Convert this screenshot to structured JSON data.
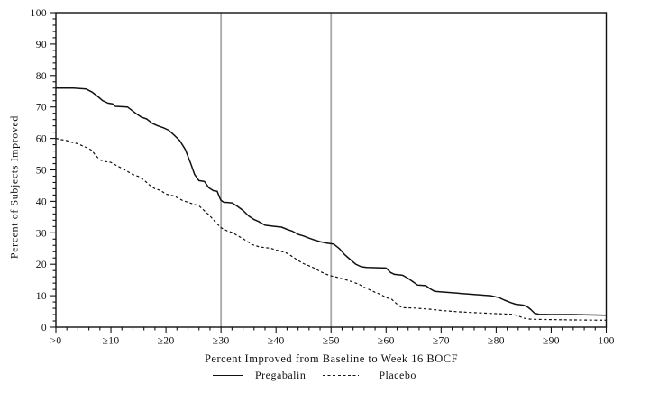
{
  "chart_data": {
    "type": "line",
    "title": "",
    "xlabel": "Percent Improved from Baseline to Week 16 BOCF",
    "ylabel": "Percent of Subjects Improved",
    "xlim": [
      0,
      100
    ],
    "ylim": [
      0,
      100
    ],
    "grid": false,
    "legend_position": "bottom",
    "x_tick_values": [
      0,
      10,
      20,
      30,
      40,
      50,
      60,
      70,
      80,
      90,
      100
    ],
    "x_tick_labels": [
      ">0",
      "≥10",
      "≥20",
      "≥30",
      "≥40",
      "≥50",
      "≥60",
      "≥70",
      "≥80",
      "≥90",
      "100"
    ],
    "y_tick_values": [
      0,
      10,
      20,
      30,
      40,
      50,
      60,
      70,
      80,
      90,
      100
    ],
    "y_tick_labels": [
      "0",
      "10",
      "20",
      "30",
      "40",
      "50",
      "60",
      "70",
      "80",
      "90",
      "100"
    ],
    "minor_tick_step": 2,
    "reference_lines_x": [
      30,
      50
    ],
    "reference_line_color": "#a8a8a8",
    "axis_color": "#111111",
    "series": [
      {
        "name": "Pregabalin",
        "style": "solid",
        "color": "#111111",
        "points": [
          [
            0,
            76
          ],
          [
            3.2,
            76
          ],
          [
            5.5,
            75.7
          ],
          [
            6.5,
            74.8
          ],
          [
            7.5,
            73.5
          ],
          [
            8.5,
            72
          ],
          [
            9.5,
            71.2
          ],
          [
            10.3,
            71
          ],
          [
            10.8,
            70.2
          ],
          [
            13,
            70
          ],
          [
            14.5,
            68
          ],
          [
            15.5,
            66.8
          ],
          [
            16.5,
            66.2
          ],
          [
            17.5,
            64.8
          ],
          [
            18.5,
            64
          ],
          [
            19.5,
            63.4
          ],
          [
            20.5,
            62.6
          ],
          [
            21.5,
            61
          ],
          [
            22.5,
            59.3
          ],
          [
            23.5,
            56.5
          ],
          [
            24.5,
            52
          ],
          [
            25.2,
            48.6
          ],
          [
            26,
            46.6
          ],
          [
            27,
            46.3
          ],
          [
            27.8,
            44.3
          ],
          [
            28.6,
            43.4
          ],
          [
            29.3,
            43.2
          ],
          [
            29.8,
            41
          ],
          [
            30,
            40.3
          ],
          [
            30.5,
            39.7
          ],
          [
            32,
            39.5
          ],
          [
            33,
            38.4
          ],
          [
            34,
            37.1
          ],
          [
            35,
            35.4
          ],
          [
            36,
            34.2
          ],
          [
            36.8,
            33.6
          ],
          [
            38,
            32.4
          ],
          [
            39.5,
            32.1
          ],
          [
            41,
            31.8
          ],
          [
            42,
            31.1
          ],
          [
            43,
            30.5
          ],
          [
            44,
            29.5
          ],
          [
            45,
            29
          ],
          [
            46,
            28.3
          ],
          [
            47,
            27.7
          ],
          [
            48,
            27.2
          ],
          [
            49,
            26.8
          ],
          [
            50.5,
            26.4
          ],
          [
            51.5,
            25
          ],
          [
            52.5,
            23
          ],
          [
            53.5,
            21.5
          ],
          [
            54.5,
            20
          ],
          [
            55.5,
            19.2
          ],
          [
            56.5,
            19
          ],
          [
            60,
            18.8
          ],
          [
            60.8,
            17.4
          ],
          [
            61.5,
            16.8
          ],
          [
            63,
            16.5
          ],
          [
            64,
            15.5
          ],
          [
            65,
            14.3
          ],
          [
            65.7,
            13.4
          ],
          [
            67.2,
            13.2
          ],
          [
            68,
            12.2
          ],
          [
            68.8,
            11.4
          ],
          [
            70,
            11.2
          ],
          [
            73,
            10.8
          ],
          [
            76,
            10.4
          ],
          [
            79,
            10
          ],
          [
            80.5,
            9.4
          ],
          [
            81.5,
            8.6
          ],
          [
            82.5,
            7.9
          ],
          [
            83.5,
            7.3
          ],
          [
            85,
            7
          ],
          [
            85.8,
            6.3
          ],
          [
            86.3,
            5.6
          ],
          [
            87,
            4.4
          ],
          [
            87.8,
            4.1
          ],
          [
            90,
            4
          ],
          [
            94,
            4
          ],
          [
            97,
            3.9
          ],
          [
            100,
            3.8
          ]
        ]
      },
      {
        "name": "Placebo",
        "style": "dashed",
        "color": "#111111",
        "points": [
          [
            0,
            60
          ],
          [
            1,
            59.6
          ],
          [
            2,
            59.3
          ],
          [
            3,
            58.7
          ],
          [
            4,
            58.3
          ],
          [
            5,
            57.5
          ],
          [
            6,
            56.8
          ],
          [
            6.6,
            56.1
          ],
          [
            7.2,
            54.6
          ],
          [
            8,
            53.2
          ],
          [
            8.8,
            52.7
          ],
          [
            10,
            52.4
          ],
          [
            11,
            51.4
          ],
          [
            12,
            50.5
          ],
          [
            13,
            49.5
          ],
          [
            14,
            48.5
          ],
          [
            15,
            47.9
          ],
          [
            16,
            46.8
          ],
          [
            17,
            45.2
          ],
          [
            18,
            44
          ],
          [
            19,
            43.5
          ],
          [
            20,
            42.3
          ],
          [
            21.5,
            41.7
          ],
          [
            23,
            40.3
          ],
          [
            24,
            39.7
          ],
          [
            25,
            39.1
          ],
          [
            26,
            38.6
          ],
          [
            27,
            37
          ],
          [
            28,
            35.4
          ],
          [
            29,
            33.4
          ],
          [
            30,
            31.6
          ],
          [
            31,
            30.7
          ],
          [
            32,
            30.1
          ],
          [
            33,
            29.1
          ],
          [
            34,
            28.1
          ],
          [
            35,
            27
          ],
          [
            35.6,
            26.3
          ],
          [
            37,
            25.5
          ],
          [
            39,
            25.1
          ],
          [
            40,
            24.5
          ],
          [
            41,
            24.1
          ],
          [
            42,
            23.5
          ],
          [
            43,
            22.4
          ],
          [
            44,
            21.2
          ],
          [
            45,
            20.2
          ],
          [
            46,
            19.5
          ],
          [
            47,
            18.7
          ],
          [
            48,
            17.7
          ],
          [
            49,
            16.9
          ],
          [
            50,
            16.3
          ],
          [
            51,
            15.9
          ],
          [
            52,
            15.4
          ],
          [
            53,
            14.9
          ],
          [
            54,
            14.3
          ],
          [
            55,
            13.7
          ],
          [
            56,
            12.7
          ],
          [
            57,
            11.9
          ],
          [
            58,
            11.1
          ],
          [
            59,
            10.4
          ],
          [
            60,
            9.4
          ],
          [
            61,
            8.9
          ],
          [
            61.8,
            7.6
          ],
          [
            62.6,
            6.5
          ],
          [
            63.2,
            6.2
          ],
          [
            65,
            6.1
          ],
          [
            68,
            5.7
          ],
          [
            70,
            5.3
          ],
          [
            73,
            4.9
          ],
          [
            76,
            4.6
          ],
          [
            80,
            4.3
          ],
          [
            83,
            4.1
          ],
          [
            84,
            3.6
          ],
          [
            84.8,
            3
          ],
          [
            85.6,
            2.6
          ],
          [
            87,
            2.5
          ],
          [
            90,
            2.4
          ],
          [
            94,
            2.3
          ],
          [
            100,
            2.2
          ]
        ]
      }
    ]
  },
  "legend": {
    "pregabalin_label": "Pregabalin",
    "placebo_label": "Placebo"
  }
}
